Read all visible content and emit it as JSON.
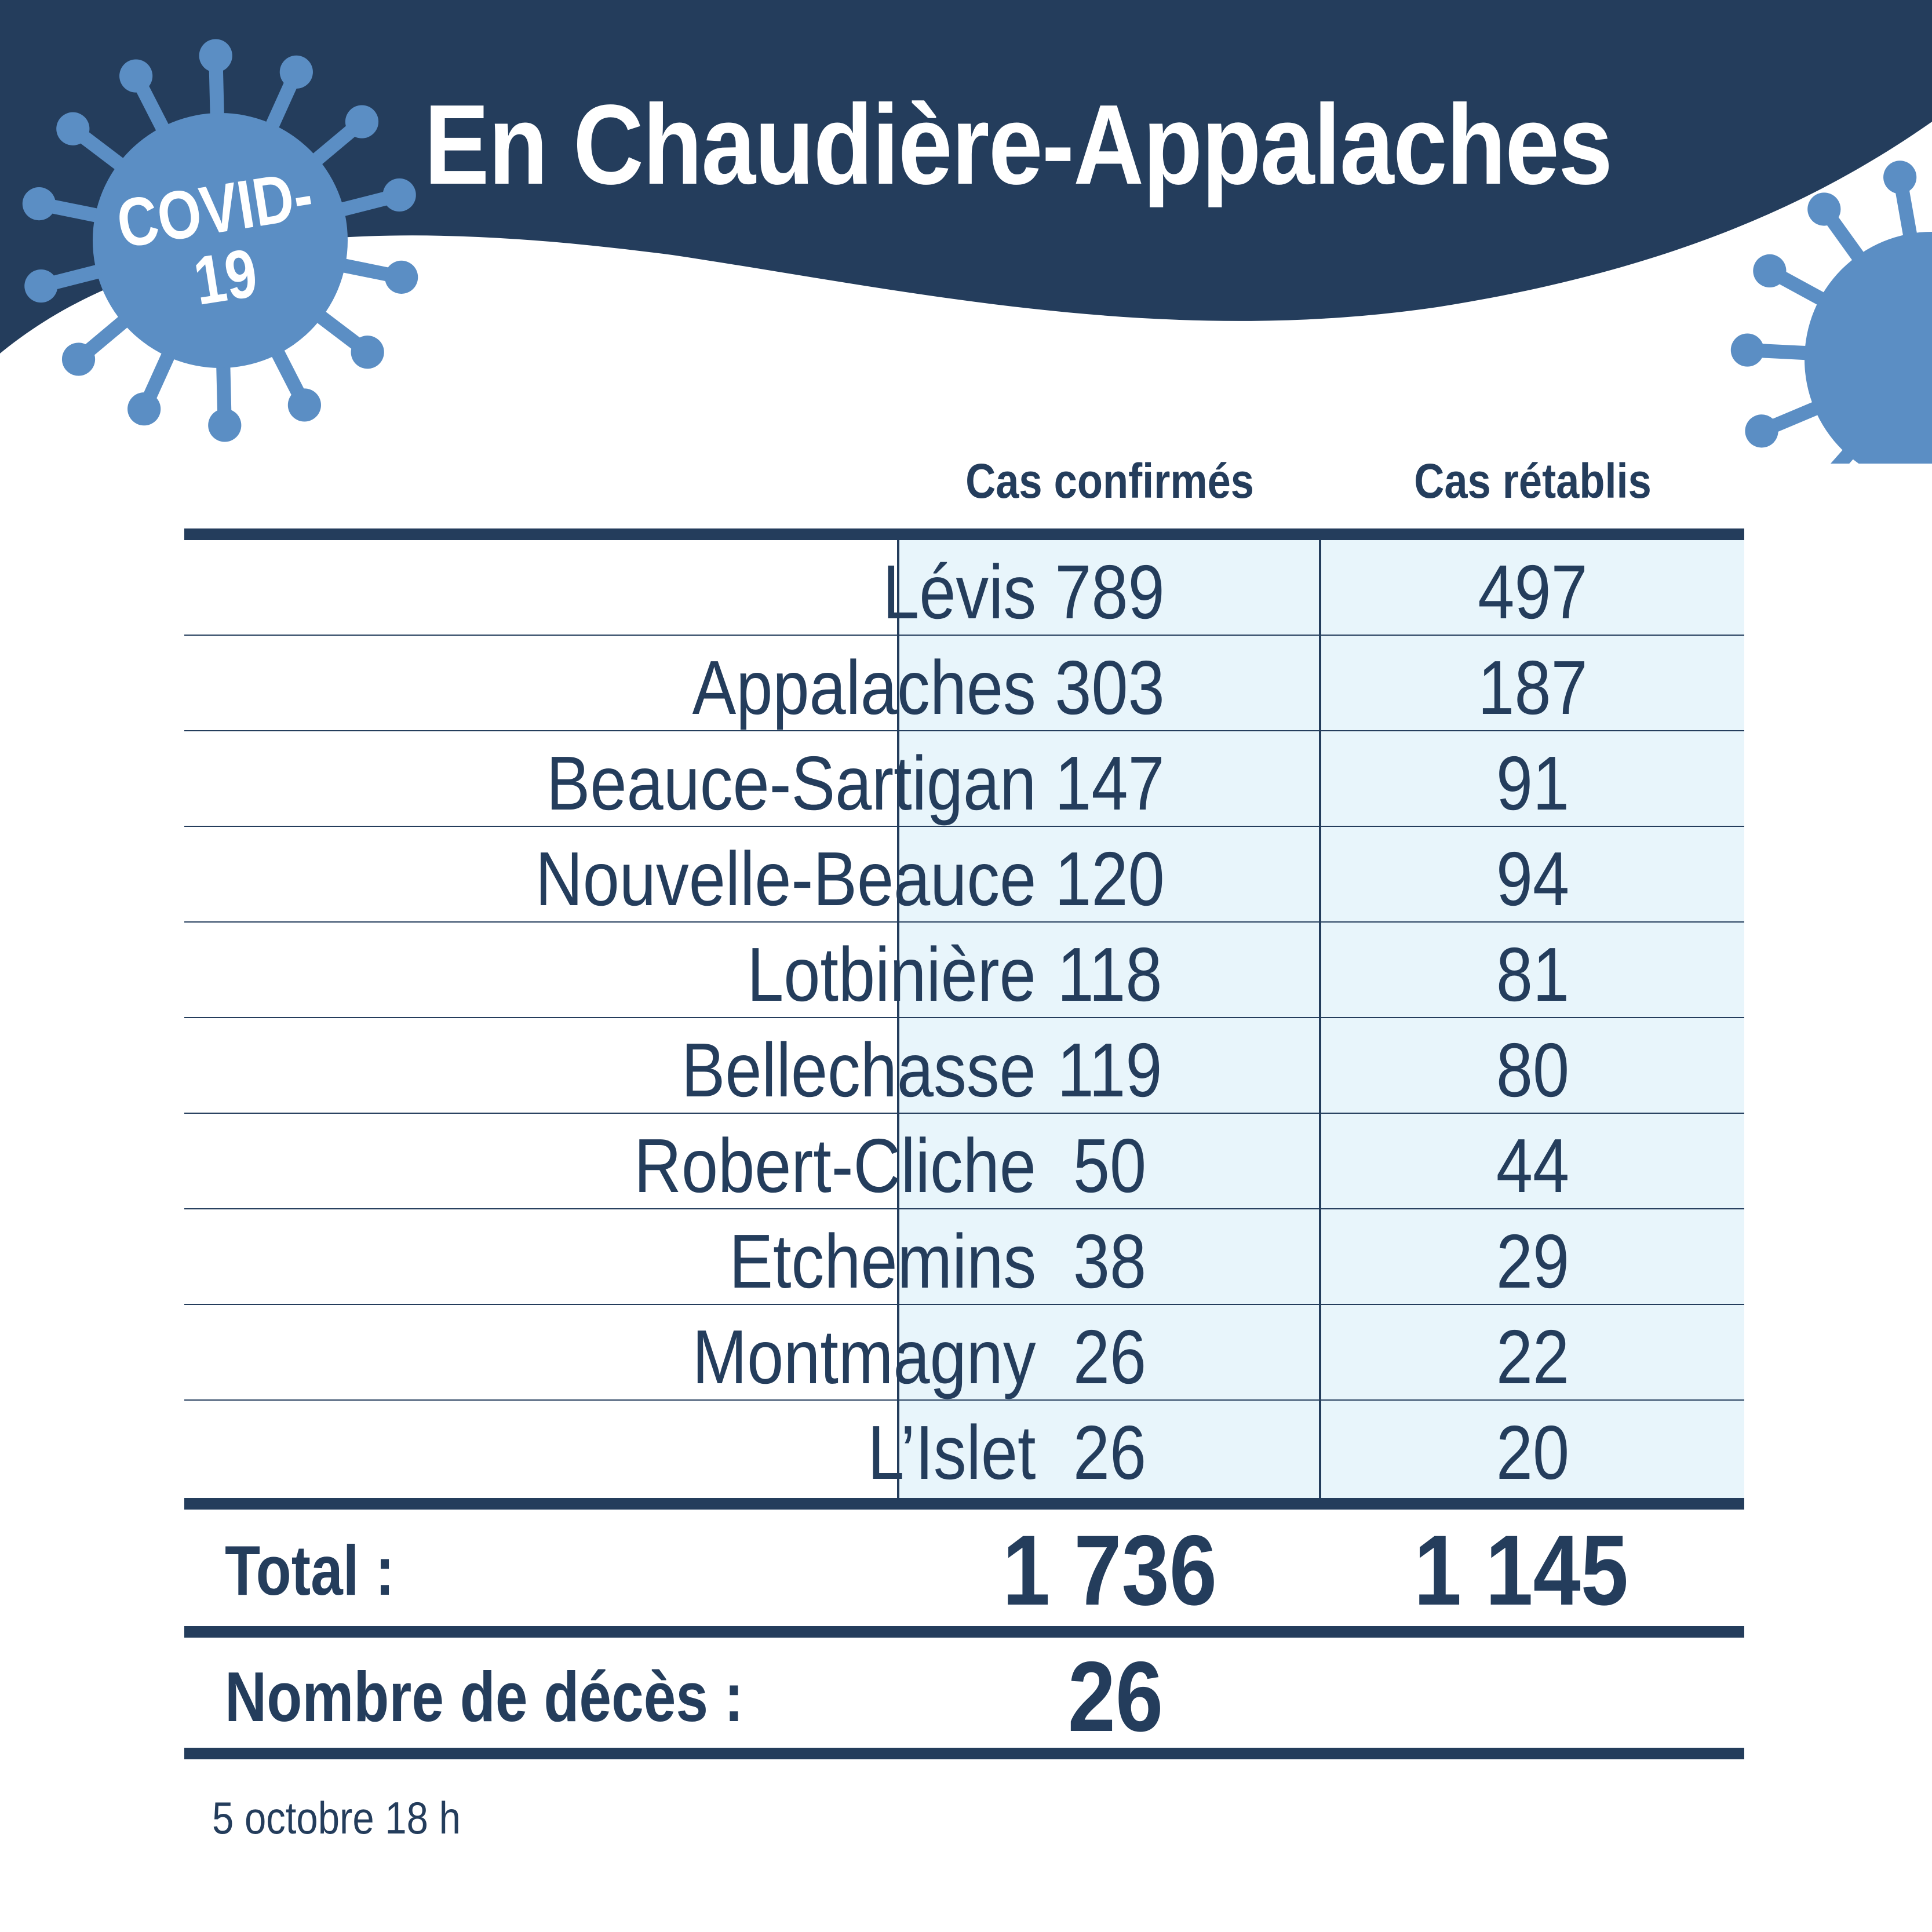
{
  "header": {
    "title": "En Chaudière-Appalaches",
    "badge_line1": "COVID-",
    "badge_line2": "19"
  },
  "colors": {
    "navy": "#243d5c",
    "virus_blue": "#5b8ec4",
    "cell_fill": "#e8f5fb",
    "background": "#ffffff"
  },
  "table": {
    "columns": [
      "Cas confirmés",
      "Cas rétablis"
    ],
    "rows": [
      {
        "region": "Lévis",
        "confirmed": "789",
        "recovered": "497"
      },
      {
        "region": "Appalaches",
        "confirmed": "303",
        "recovered": "187"
      },
      {
        "region": "Beauce-Sartigan",
        "confirmed": "147",
        "recovered": "91"
      },
      {
        "region": "Nouvelle-Beauce",
        "confirmed": "120",
        "recovered": "94"
      },
      {
        "region": "Lotbinière",
        "confirmed": "118",
        "recovered": "81"
      },
      {
        "region": "Bellechasse",
        "confirmed": "119",
        "recovered": "80"
      },
      {
        "region": "Robert-Cliche",
        "confirmed": "50",
        "recovered": "44"
      },
      {
        "region": "Etchemins",
        "confirmed": "38",
        "recovered": "29"
      },
      {
        "region": "Montmagny",
        "confirmed": "26",
        "recovered": "22"
      },
      {
        "region": "L’Islet",
        "confirmed": "26",
        "recovered": "20"
      }
    ],
    "total_label": "Total :",
    "total_confirmed": "1 736",
    "total_recovered": "1 145",
    "deaths_label": "Nombre de décès :",
    "deaths_value": "26"
  },
  "footer": {
    "date": "5 octobre 18 h"
  },
  "icons": [
    "virus-icon",
    "virus-icon"
  ]
}
